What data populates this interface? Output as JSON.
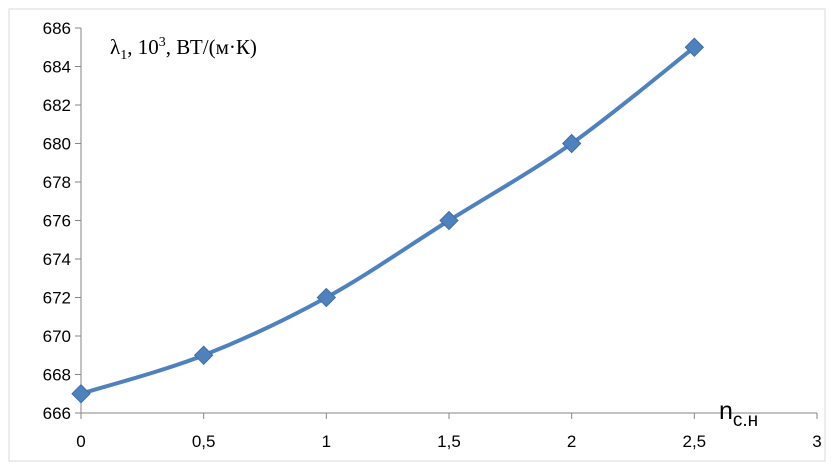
{
  "chart_data": {
    "type": "line",
    "x": [
      0,
      0.5,
      1,
      1.5,
      2,
      2.5
    ],
    "series": [
      {
        "values": [
          667,
          669,
          672,
          676,
          680,
          685
        ],
        "color": "#4f81bd",
        "marker": "diamond",
        "smooth": true
      }
    ],
    "xlim": [
      0,
      3
    ],
    "ylim": [
      666,
      686
    ],
    "x_ticks": [
      0,
      0.5,
      1,
      1.5,
      2,
      2.5,
      3
    ],
    "x_tick_labels": [
      "0",
      "0,5",
      "1",
      "1,5",
      "2",
      "2,5",
      "3"
    ],
    "y_ticks": [
      666,
      668,
      670,
      672,
      674,
      676,
      678,
      680,
      682,
      684,
      686
    ],
    "y_tick_labels": [
      "666",
      "668",
      "670",
      "672",
      "674",
      "676",
      "678",
      "680",
      "682",
      "684",
      "686"
    ],
    "ylabel": {
      "lambda": "λ",
      "lambda_sub": "1",
      "ten": ", 10",
      "exp": "3",
      "units": ", ВТ/(м·К)"
    },
    "xlabel": {
      "main": "n",
      "sub": "с.н"
    },
    "grid": false,
    "frame_color": "#868686",
    "colors": {
      "series": "#4f81bd",
      "axis": "#868686",
      "text": "#000000"
    }
  }
}
